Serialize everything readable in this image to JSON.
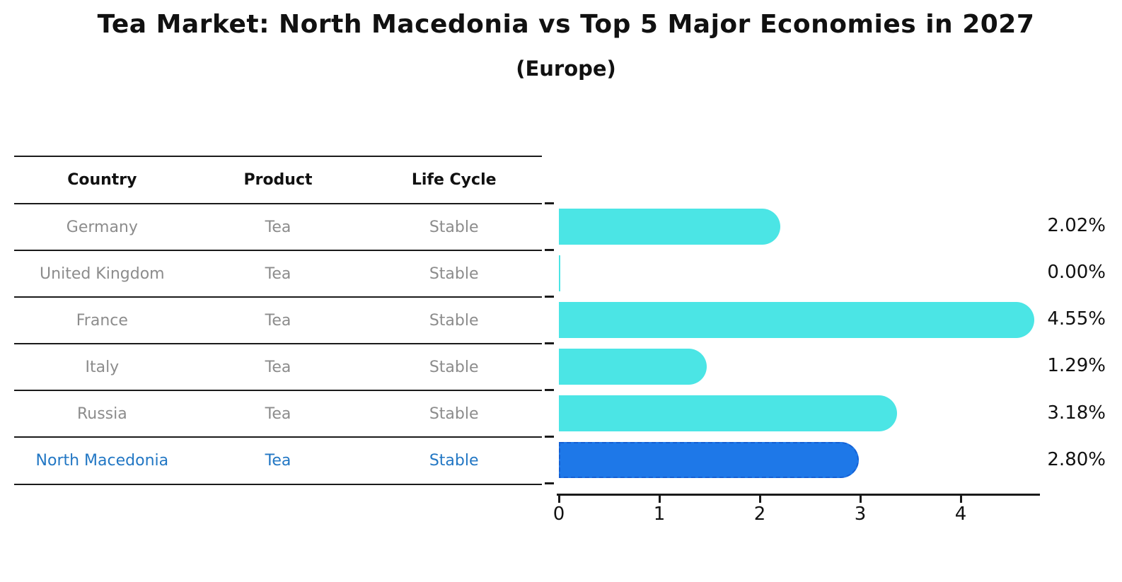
{
  "title": "Tea Market: North Macedonia vs Top 5 Major Economies in 2027",
  "subtitle": "(Europe)",
  "table": {
    "headers": [
      "Country",
      "Product",
      "Life Cycle"
    ],
    "rows": [
      {
        "country": "Germany",
        "product": "Tea",
        "life_cycle": "Stable",
        "highlighted": false
      },
      {
        "country": "United Kingdom",
        "product": "Tea",
        "life_cycle": "Stable",
        "highlighted": false
      },
      {
        "country": "France",
        "product": "Tea",
        "life_cycle": "Stable",
        "highlighted": false
      },
      {
        "country": "Italy",
        "product": "Tea",
        "life_cycle": "Stable",
        "highlighted": false
      },
      {
        "country": "Russia",
        "product": "Tea",
        "life_cycle": "Stable",
        "highlighted": false
      },
      {
        "country": "North Macedonia",
        "product": "Tea",
        "life_cycle": "Stable",
        "highlighted": true
      }
    ]
  },
  "chart_data": {
    "type": "bar",
    "orientation": "horizontal",
    "title": "Tea Market: North Macedonia vs Top 5 Major Economies in 2027 (Europe)",
    "categories": [
      "Germany",
      "United Kingdom",
      "France",
      "Italy",
      "Russia",
      "North Macedonia"
    ],
    "values": [
      2.02,
      0.0,
      4.55,
      1.29,
      3.18,
      2.8
    ],
    "labels": [
      "2.02%",
      "0.00%",
      "4.55%",
      "1.29%",
      "3.18%",
      "2.80%"
    ],
    "unit": "%",
    "x_ticks": [
      "0",
      "1",
      "2",
      "3",
      "4"
    ],
    "x_tick_values": [
      0,
      1,
      2,
      3,
      4
    ],
    "xlim": [
      0,
      4.79
    ],
    "grid": false,
    "legend": "none",
    "highlight_category": "North Macedonia",
    "colors": {
      "bar": "#4be5e5",
      "highlight_bar": "#1e78e8",
      "highlight_border": "#1560d4",
      "highlight_text": "#2277c4",
      "row_text": "#8c8c8c",
      "axis": "#1a1a1a"
    }
  }
}
